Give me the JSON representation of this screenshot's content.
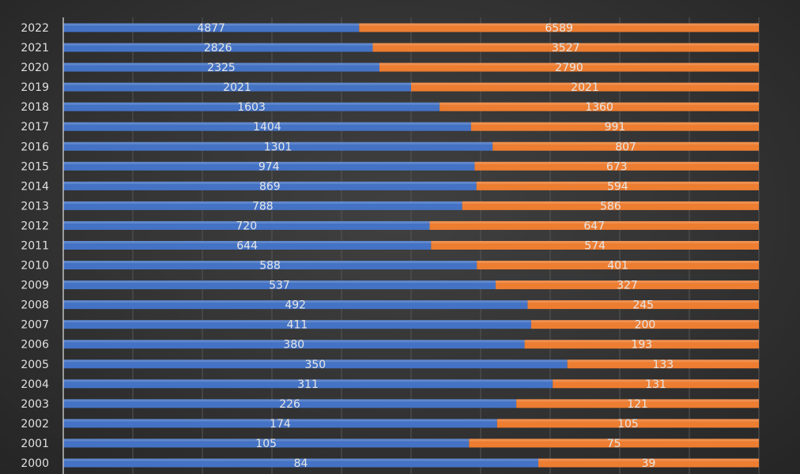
{
  "chart_data": {
    "type": "bar",
    "orientation": "horizontal",
    "stacking": "percent",
    "categories": [
      "2022",
      "2021",
      "2020",
      "2019",
      "2018",
      "2017",
      "2016",
      "2015",
      "2014",
      "2013",
      "2012",
      "2011",
      "2010",
      "2009",
      "2008",
      "2007",
      "2006",
      "2005",
      "2004",
      "2003",
      "2002",
      "2001",
      "2000"
    ],
    "series": [
      {
        "color": "#4472c4",
        "values": [
          4877,
          2826,
          2325,
          2021,
          1603,
          1404,
          1301,
          974,
          869,
          788,
          720,
          644,
          588,
          537,
          492,
          411,
          380,
          350,
          311,
          226,
          174,
          105,
          84
        ]
      },
      {
        "color": "#ed7d31",
        "values": [
          6589,
          3527,
          2790,
          2021,
          1360,
          991,
          807,
          673,
          594,
          586,
          647,
          574,
          401,
          327,
          245,
          200,
          193,
          133,
          131,
          121,
          105,
          75,
          39
        ]
      }
    ],
    "xlim": [
      0,
      100
    ],
    "grid": true,
    "data_labels": true,
    "legend": "none"
  }
}
